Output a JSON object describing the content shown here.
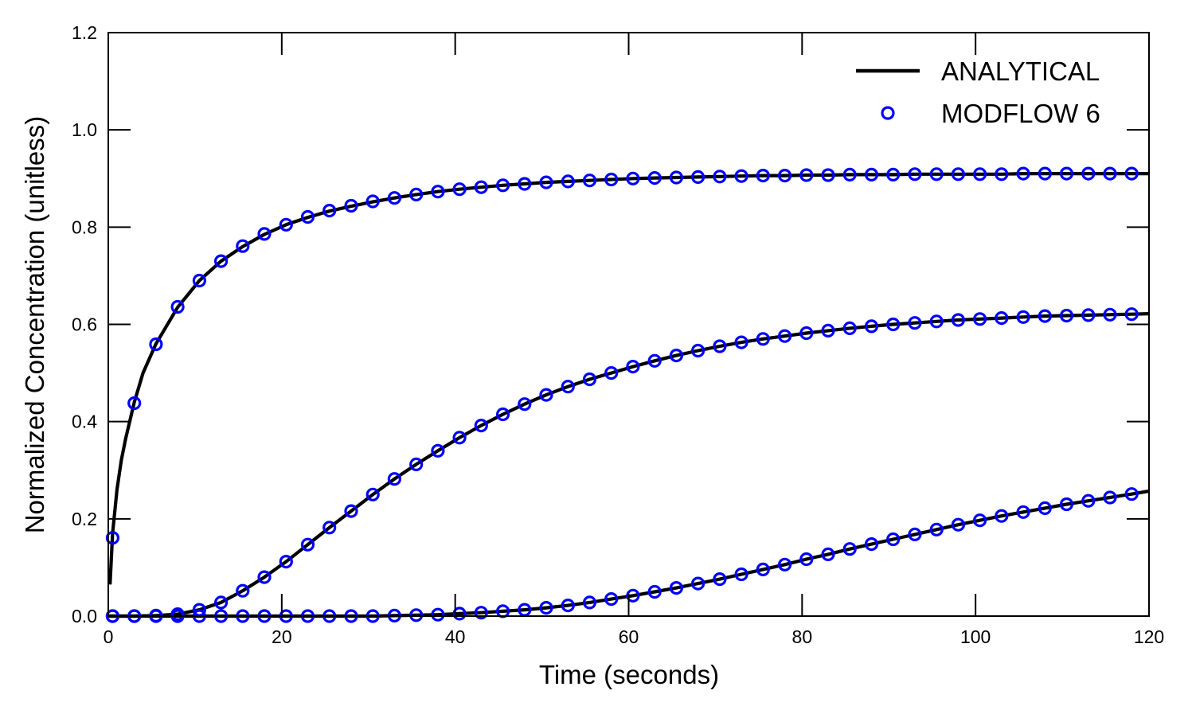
{
  "chart_data": {
    "type": "line",
    "xlabel": "Time (seconds)",
    "ylabel": "Normalized Concentration (unitless)",
    "xlim": [
      0,
      120
    ],
    "ylim": [
      0,
      1.2
    ],
    "xticks": [
      0,
      20,
      40,
      60,
      80,
      100,
      120
    ],
    "xtick_labels": [
      "0",
      "20",
      "40",
      "60",
      "80",
      "100",
      "120"
    ],
    "yticks": [
      0,
      0.2,
      0.4,
      0.6,
      0.8,
      1.0,
      1.2
    ],
    "ytick_labels": [
      "0.0",
      "0.2",
      "0.4",
      "0.6",
      "0.8",
      "1.0",
      "1.2"
    ],
    "grid": false,
    "legend_position": "top-right",
    "legend": [
      {
        "label": "ANALYTICAL",
        "style": "line",
        "color": "#000000"
      },
      {
        "label": "MODFLOW 6",
        "style": "circle-marker",
        "color": "#0000ff"
      }
    ],
    "x": [
      0.5,
      3,
      5.5,
      8,
      10.5,
      13,
      15.5,
      18,
      20.5,
      23,
      25.5,
      28,
      30.5,
      33,
      35.5,
      38,
      40.5,
      43,
      45.5,
      48,
      50.5,
      53,
      55.5,
      58,
      60.5,
      63,
      65.5,
      68,
      70.5,
      73,
      75.5,
      78,
      80.5,
      83,
      85.5,
      88,
      90.5,
      93,
      95.5,
      98,
      100.5,
      103,
      105.5,
      108,
      110.5,
      113,
      115.5,
      118
    ],
    "series": [
      {
        "name": "ANALYTICAL",
        "kind": "line",
        "color": "#000000",
        "curves": [
          {
            "x": [
              0.2,
              0.5,
              1,
              1.5,
              2,
              3,
              4,
              5.5,
              7,
              8,
              10.5,
              13,
              15.5,
              18,
              20.5,
              23,
              25.5,
              28,
              30.5,
              33,
              35.5,
              38,
              40.5,
              43,
              45.5,
              48,
              50.5,
              53,
              55.5,
              58,
              60.5,
              63,
              65.5,
              68,
              70.5,
              73,
              75.5,
              78,
              80.5,
              83,
              85.5,
              88,
              90.5,
              93,
              95.5,
              98,
              100.5,
              103,
              105.5,
              108,
              110.5,
              113,
              115.5,
              118,
              120
            ],
            "y": [
              0.065,
              0.17,
              0.26,
              0.32,
              0.365,
              0.44,
              0.5,
              0.56,
              0.605,
              0.635,
              0.69,
              0.73,
              0.76,
              0.785,
              0.805,
              0.82,
              0.833,
              0.843,
              0.852,
              0.86,
              0.867,
              0.873,
              0.878,
              0.882,
              0.886,
              0.889,
              0.892,
              0.894,
              0.896,
              0.898,
              0.9,
              0.901,
              0.902,
              0.903,
              0.904,
              0.905,
              0.906,
              0.906,
              0.907,
              0.907,
              0.908,
              0.908,
              0.908,
              0.909,
              0.909,
              0.909,
              0.909,
              0.909,
              0.91,
              0.91,
              0.91,
              0.91,
              0.91,
              0.91,
              0.91
            ]
          },
          {
            "x": [
              0,
              3,
              5.5,
              8,
              10.5,
              13,
              15.5,
              18,
              20.5,
              23,
              25.5,
              28,
              30.5,
              33,
              35.5,
              38,
              40.5,
              43,
              45.5,
              48,
              50.5,
              53,
              55.5,
              58,
              60.5,
              63,
              65.5,
              68,
              70.5,
              73,
              75.5,
              78,
              80.5,
              83,
              85.5,
              88,
              90.5,
              93,
              95.5,
              98,
              100.5,
              103,
              105.5,
              108,
              110.5,
              113,
              115.5,
              118,
              120
            ],
            "y": [
              0,
              0,
              0.001,
              0.004,
              0.013,
              0.028,
              0.052,
              0.08,
              0.112,
              0.147,
              0.182,
              0.216,
              0.25,
              0.282,
              0.312,
              0.34,
              0.367,
              0.392,
              0.415,
              0.436,
              0.455,
              0.472,
              0.487,
              0.5,
              0.513,
              0.525,
              0.536,
              0.546,
              0.555,
              0.563,
              0.57,
              0.576,
              0.582,
              0.587,
              0.592,
              0.596,
              0.6,
              0.603,
              0.606,
              0.609,
              0.611,
              0.613,
              0.615,
              0.617,
              0.618,
              0.619,
              0.62,
              0.621,
              0.622
            ]
          },
          {
            "x": [
              0,
              30.5,
              33,
              35.5,
              38,
              40.5,
              43,
              45.5,
              48,
              50.5,
              53,
              55.5,
              58,
              60.5,
              63,
              65.5,
              68,
              70.5,
              73,
              75.5,
              78,
              80.5,
              83,
              85.5,
              88,
              90.5,
              93,
              95.5,
              98,
              100.5,
              103,
              105.5,
              108,
              110.5,
              113,
              115.5,
              118,
              120
            ],
            "y": [
              0,
              0,
              0.001,
              0.002,
              0.003,
              0.005,
              0.007,
              0.01,
              0.013,
              0.017,
              0.022,
              0.028,
              0.035,
              0.042,
              0.05,
              0.058,
              0.067,
              0.076,
              0.086,
              0.096,
              0.106,
              0.117,
              0.127,
              0.138,
              0.148,
              0.158,
              0.168,
              0.178,
              0.188,
              0.197,
              0.206,
              0.214,
              0.222,
              0.23,
              0.237,
              0.244,
              0.251,
              0.257
            ]
          }
        ]
      },
      {
        "name": "MODFLOW 6",
        "kind": "markers",
        "color": "#0000ff",
        "curves": [
          {
            "y": [
              0.161,
              0.438,
              0.559,
              0.636,
              0.69,
              0.73,
              0.761,
              0.786,
              0.805,
              0.821,
              0.834,
              0.844,
              0.853,
              0.86,
              0.867,
              0.873,
              0.878,
              0.882,
              0.886,
              0.889,
              0.892,
              0.894,
              0.896,
              0.898,
              0.9,
              0.901,
              0.902,
              0.903,
              0.904,
              0.905,
              0.906,
              0.906,
              0.907,
              0.907,
              0.908,
              0.908,
              0.908,
              0.909,
              0.909,
              0.909,
              0.909,
              0.909,
              0.91,
              0.91,
              0.91,
              0.91,
              0.91,
              0.91
            ]
          },
          {
            "y": [
              0.0,
              0.0,
              0.001,
              0.004,
              0.013,
              0.028,
              0.052,
              0.08,
              0.112,
              0.147,
              0.182,
              0.216,
              0.25,
              0.282,
              0.312,
              0.34,
              0.367,
              0.392,
              0.415,
              0.436,
              0.455,
              0.472,
              0.487,
              0.5,
              0.513,
              0.525,
              0.536,
              0.546,
              0.555,
              0.563,
              0.57,
              0.576,
              0.582,
              0.587,
              0.592,
              0.596,
              0.6,
              0.603,
              0.606,
              0.609,
              0.611,
              0.613,
              0.615,
              0.617,
              0.618,
              0.619,
              0.62,
              0.621
            ]
          },
          {
            "y": [
              0.0,
              0.0,
              0.0,
              0.0,
              0.0,
              0.0,
              0.0,
              0.0,
              0.0,
              0.0,
              0.0,
              0.0,
              0.0,
              0.001,
              0.002,
              0.003,
              0.005,
              0.007,
              0.01,
              0.013,
              0.017,
              0.022,
              0.028,
              0.035,
              0.042,
              0.05,
              0.058,
              0.067,
              0.076,
              0.086,
              0.096,
              0.106,
              0.117,
              0.127,
              0.138,
              0.148,
              0.158,
              0.168,
              0.178,
              0.188,
              0.197,
              0.206,
              0.214,
              0.222,
              0.23,
              0.237,
              0.244,
              0.251
            ]
          }
        ]
      }
    ]
  }
}
